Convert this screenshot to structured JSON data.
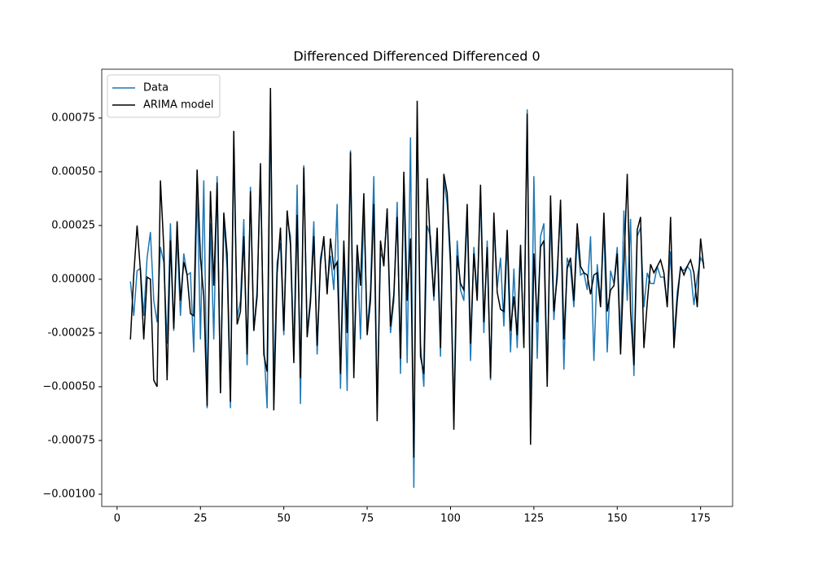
{
  "chart_data": {
    "type": "line",
    "title": "Differenced Differenced Differenced 0",
    "x": [
      4,
      5,
      6,
      7,
      8,
      9,
      10,
      11,
      12,
      13,
      14,
      15,
      16,
      17,
      18,
      19,
      20,
      21,
      22,
      23,
      24,
      25,
      26,
      27,
      28,
      29,
      30,
      31,
      32,
      33,
      34,
      35,
      36,
      37,
      38,
      39,
      40,
      41,
      42,
      43,
      44,
      45,
      46,
      47,
      48,
      49,
      50,
      51,
      52,
      53,
      54,
      55,
      56,
      57,
      58,
      59,
      60,
      61,
      62,
      63,
      64,
      65,
      66,
      67,
      68,
      69,
      70,
      71,
      72,
      73,
      74,
      75,
      76,
      77,
      78,
      79,
      80,
      81,
      82,
      83,
      84,
      85,
      86,
      87,
      88,
      89,
      90,
      91,
      92,
      93,
      94,
      95,
      96,
      97,
      98,
      99,
      100,
      101,
      102,
      103,
      104,
      105,
      106,
      107,
      108,
      109,
      110,
      111,
      112,
      113,
      114,
      115,
      116,
      117,
      118,
      119,
      120,
      121,
      122,
      123,
      124,
      125,
      126,
      127,
      128,
      129,
      130,
      131,
      132,
      133,
      134,
      135,
      136,
      137,
      138,
      139,
      140,
      141,
      142,
      143,
      144,
      145,
      146,
      147,
      148,
      149,
      150,
      151,
      152,
      153,
      154,
      155,
      156,
      157,
      158,
      159,
      160,
      161,
      162,
      163,
      164,
      165,
      166,
      167,
      168,
      169,
      170,
      171,
      172,
      173,
      174,
      175,
      176
    ],
    "series": [
      {
        "name": "Data",
        "color": "#1f77b4",
        "values": [
          -1e-05,
          -0.00017,
          4e-05,
          5e-05,
          -0.00017,
          0.0001,
          0.00022,
          -0.0001,
          -0.0002,
          0.00015,
          8e-05,
          -0.0003,
          0.00026,
          -0.00024,
          0.0002,
          -0.00017,
          0.00012,
          2e-05,
          3e-05,
          -0.00034,
          0.00043,
          -0.00028,
          0.00046,
          -0.0006,
          0.00026,
          -0.00028,
          0.00048,
          -0.00053,
          0.00028,
          5e-05,
          -0.0006,
          0.0006,
          -0.00018,
          -0.0001,
          0.00028,
          -0.0004,
          0.00043,
          -0.00024,
          -5e-05,
          0.00048,
          -0.0003,
          -0.0006,
          0.0008,
          -0.0005,
          8e-05,
          0.00017,
          -0.00026,
          0.00028,
          0.0002,
          -0.00035,
          0.00044,
          -0.00058,
          0.00053,
          -0.00025,
          -8e-05,
          0.00027,
          -0.00035,
          0.0001,
          0.00018,
          -4e-05,
          0.00011,
          -5e-05,
          0.00035,
          -0.00051,
          0.00015,
          -0.00052,
          0.0006,
          -0.0004,
          0.00014,
          -0.00028,
          0.00035,
          -0.00024,
          -5e-05,
          0.00048,
          -0.0006,
          0.00012,
          9e-05,
          0.0003,
          -0.00025,
          -0.0001,
          0.00036,
          -0.00044,
          0.00048,
          -0.00039,
          0.00066,
          -0.00097,
          0.00075,
          -0.0003,
          -0.0005,
          0.00025,
          0.0002,
          -0.0001,
          0.00019,
          -0.00036,
          0.00046,
          0.00035,
          5e-05,
          -0.0006,
          0.00018,
          -5e-05,
          -0.0001,
          0.0003,
          -0.00038,
          0.00015,
          -8e-05,
          0.0004,
          -0.00025,
          0.00018,
          -0.00047,
          0.00027,
          -4e-05,
          0.0001,
          -0.00022,
          0.00018,
          -0.00034,
          5e-05,
          -0.00032,
          0.00013,
          -0.0003,
          0.00079,
          -0.0007,
          0.00048,
          -0.00037,
          0.0002,
          0.00026,
          -0.00045,
          0.0003,
          -0.00019,
          5e-05,
          0.00032,
          -0.00042,
          0.0001,
          5e-05,
          -0.00013,
          0.0002,
          2e-05,
          3e-05,
          -5e-05,
          0.0002,
          -0.00038,
          7e-05,
          -0.0001,
          0.00025,
          -0.00034,
          4e-05,
          -2e-05,
          0.00015,
          -0.0003,
          0.00032,
          -0.0001,
          0.00028,
          -0.00045,
          0.0002,
          0.00024,
          -0.00013,
          3e-05,
          -2e-05,
          -2e-05,
          6e-05,
          1e-05,
          1e-05,
          -0.00012,
          0.00013,
          -0.00028,
          -6e-05,
          5e-05,
          4e-05,
          6e-05,
          4e-05,
          -0.00012,
          1e-05,
          0.0001,
          7e-05
        ]
      },
      {
        "name": "ARIMA model",
        "color": "#000000",
        "values": [
          -0.00028,
          2e-05,
          0.00025,
          4e-05,
          -0.00028,
          1e-05,
          0.0,
          -0.00047,
          -0.0005,
          0.00046,
          0.00015,
          -0.00047,
          0.00018,
          -0.00023,
          0.00027,
          -0.0001,
          8e-05,
          2e-05,
          -0.00016,
          -0.00017,
          0.00051,
          0.0001,
          -8e-05,
          -0.00059,
          0.00041,
          -3e-05,
          0.00045,
          -0.00053,
          0.00031,
          0.00012,
          -0.00057,
          0.00069,
          -0.00021,
          -0.00015,
          0.0002,
          -0.00035,
          0.00041,
          -0.00024,
          -8e-05,
          0.00054,
          -0.00035,
          -0.00043,
          0.00089,
          -0.00061,
          3e-05,
          0.00024,
          -0.00024,
          0.00032,
          0.00016,
          -0.00039,
          0.0003,
          -0.00046,
          0.00052,
          -0.00027,
          -0.00011,
          0.0002,
          -0.00031,
          7e-05,
          0.0002,
          -7e-05,
          0.00019,
          5e-05,
          8e-05,
          -0.00044,
          0.00018,
          -0.00025,
          0.00059,
          -0.00046,
          0.00016,
          -3e-05,
          0.0004,
          -0.00026,
          -0.0001,
          0.00035,
          -0.00066,
          0.00018,
          6e-05,
          0.00033,
          -0.00022,
          -7e-05,
          0.00029,
          -0.00037,
          0.0005,
          -0.0001,
          0.00019,
          -0.00083,
          0.00083,
          -0.00036,
          -0.00044,
          0.00047,
          0.00015,
          -8e-05,
          0.00024,
          -0.00032,
          0.00049,
          0.0004,
          0.0001,
          -0.0007,
          0.00011,
          -2e-05,
          -5e-05,
          0.00035,
          -0.0003,
          0.00012,
          -0.0001,
          0.00044,
          -0.0002,
          0.00015,
          -0.00046,
          0.00031,
          -6e-05,
          -0.00014,
          -0.00015,
          0.00023,
          -0.00024,
          -8e-05,
          -0.00026,
          0.00016,
          -0.00032,
          0.00077,
          -0.00077,
          0.00012,
          -0.0002,
          0.00015,
          0.00018,
          -0.0005,
          0.00039,
          -0.00015,
          1e-05,
          0.00037,
          -0.00028,
          5e-05,
          0.0001,
          -0.0001,
          0.00026,
          6e-05,
          3e-05,
          2e-05,
          -7e-05,
          2e-05,
          3e-05,
          -0.00013,
          0.00031,
          -0.00015,
          -5e-05,
          -3e-05,
          0.00012,
          -0.00035,
          6e-05,
          0.00049,
          -0.00015,
          -0.0004,
          0.00023,
          0.00029,
          -0.00032,
          -0.00011,
          7e-05,
          3e-05,
          6e-05,
          9e-05,
          3e-05,
          -0.00013,
          0.00029,
          -0.00032,
          -0.0001,
          6e-05,
          2e-05,
          6e-05,
          9e-05,
          3e-05,
          -0.00013,
          0.00019,
          5e-05
        ]
      }
    ],
    "xlim": [
      -4.6,
      184.6
    ],
    "xticks": [
      0,
      25,
      50,
      75,
      100,
      125,
      150,
      175
    ],
    "ylim": [
      -0.001057,
      0.000977
    ],
    "yticks": [
      {
        "value": -0.001,
        "label": "−0.00100"
      },
      -0.00075,
      {
        "value": -0.0005,
        "label": "−0.00050"
      },
      -0.00025,
      {
        "value": 0,
        "label": "0.00000"
      },
      0.00025,
      {
        "value": 0.0005,
        "label": "0.00050"
      },
      0.00075
    ],
    "legend": "upper left"
  }
}
